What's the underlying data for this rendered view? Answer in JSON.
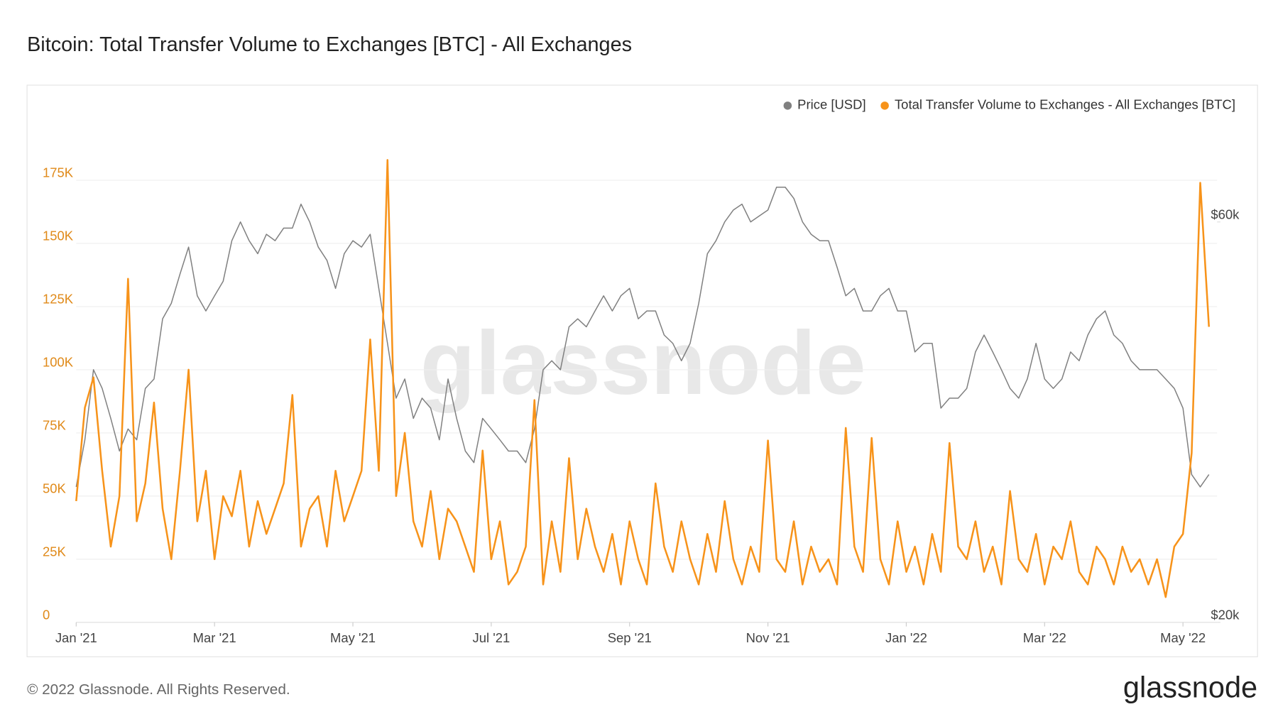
{
  "chart_data": {
    "type": "line",
    "title": "Bitcoin: Total Transfer Volume to Exchanges [BTC] - All Exchanges",
    "watermark": "glassnode",
    "categories": [
      "Jan '21",
      null,
      null,
      null,
      null,
      null,
      null,
      null,
      null,
      null,
      null,
      null,
      null,
      null,
      null,
      null,
      "Mar '21",
      null,
      null,
      null,
      null,
      null,
      null,
      null,
      null,
      null,
      null,
      null,
      null,
      null,
      null,
      null,
      "May '21",
      null,
      null,
      null,
      null,
      null,
      null,
      null,
      null,
      null,
      null,
      null,
      null,
      null,
      null,
      null,
      "Jul '21",
      null,
      null,
      null,
      null,
      null,
      null,
      null,
      null,
      null,
      null,
      null,
      null,
      null,
      null,
      null,
      "Sep '21",
      null,
      null,
      null,
      null,
      null,
      null,
      null,
      null,
      null,
      null,
      null,
      null,
      null,
      null,
      null,
      "Nov '21",
      null,
      null,
      null,
      null,
      null,
      null,
      null,
      null,
      null,
      null,
      null,
      null,
      null,
      null,
      null,
      "Jan '22",
      null,
      null,
      null,
      null,
      null,
      null,
      null,
      null,
      null,
      null,
      null,
      null,
      null,
      null,
      null,
      "Mar '22",
      null,
      null,
      null,
      null,
      null,
      null,
      null,
      null,
      null,
      null,
      null,
      null,
      null,
      null,
      null,
      "May '22",
      null,
      null,
      null
    ],
    "series": [
      {
        "name": "Price [USD]",
        "color": "#808080",
        "axis": "y2",
        "values": [
          29000,
          33000,
          40000,
          38000,
          35000,
          32000,
          34000,
          33000,
          38000,
          39000,
          46000,
          48000,
          52000,
          56000,
          49000,
          47000,
          49000,
          51000,
          57000,
          60000,
          57000,
          55000,
          58000,
          57000,
          59000,
          59000,
          63000,
          60000,
          56000,
          54000,
          50000,
          55000,
          57000,
          56000,
          58000,
          50000,
          43000,
          37000,
          39000,
          35000,
          37000,
          36000,
          33000,
          39000,
          35000,
          32000,
          31000,
          35000,
          34000,
          33000,
          32000,
          32000,
          31000,
          34000,
          40000,
          41000,
          40000,
          45000,
          46000,
          45000,
          47000,
          49000,
          47000,
          49000,
          50000,
          46000,
          47000,
          47000,
          44000,
          43000,
          41000,
          43000,
          48000,
          55000,
          57000,
          60000,
          62000,
          63000,
          60000,
          61000,
          62000,
          66000,
          66000,
          64000,
          60000,
          58000,
          57000,
          57000,
          53000,
          49000,
          50000,
          47000,
          47000,
          49000,
          50000,
          47000,
          47000,
          42000,
          43000,
          43000,
          36000,
          37000,
          37000,
          38000,
          42000,
          44000,
          42000,
          40000,
          38000,
          37000,
          39000,
          43000,
          39000,
          38000,
          39000,
          42000,
          41000,
          44000,
          46000,
          47000,
          44000,
          43000,
          41000,
          40000,
          40000,
          40000,
          39000,
          38000,
          36000,
          30000,
          29000,
          30000
        ]
      },
      {
        "name": "Total Transfer Volume to Exchanges - All Exchanges [BTC]",
        "color": "#f7931a",
        "values": [
          48000,
          85000,
          97000,
          60000,
          30000,
          50000,
          136000,
          40000,
          55000,
          87000,
          45000,
          25000,
          60000,
          100000,
          40000,
          60000,
          25000,
          50000,
          42000,
          60000,
          30000,
          48000,
          35000,
          45000,
          55000,
          90000,
          30000,
          45000,
          50000,
          30000,
          60000,
          40000,
          50000,
          60000,
          112000,
          60000,
          183000,
          50000,
          75000,
          40000,
          30000,
          52000,
          25000,
          45000,
          40000,
          30000,
          20000,
          68000,
          25000,
          40000,
          15000,
          20000,
          30000,
          88000,
          15000,
          40000,
          20000,
          65000,
          25000,
          45000,
          30000,
          20000,
          35000,
          15000,
          40000,
          25000,
          15000,
          55000,
          30000,
          20000,
          40000,
          25000,
          15000,
          35000,
          20000,
          48000,
          25000,
          15000,
          30000,
          20000,
          72000,
          25000,
          20000,
          40000,
          15000,
          30000,
          20000,
          25000,
          15000,
          77000,
          30000,
          20000,
          73000,
          25000,
          15000,
          40000,
          20000,
          30000,
          15000,
          35000,
          20000,
          71000,
          30000,
          25000,
          40000,
          20000,
          30000,
          15000,
          52000,
          25000,
          20000,
          35000,
          15000,
          30000,
          25000,
          40000,
          20000,
          15000,
          30000,
          25000,
          15000,
          30000,
          20000,
          25000,
          15000,
          25000,
          10000,
          30000,
          35000,
          67000,
          174000,
          117000
        ]
      }
    ],
    "ylim": [
      0,
      200000
    ],
    "yticks": [
      0,
      {
        "value": 25000,
        "label": "25K"
      },
      {
        "value": 50000,
        "label": "50K"
      },
      {
        "value": 75000,
        "label": "75K"
      },
      {
        "value": 100000,
        "label": "100K"
      },
      {
        "value": 125000,
        "label": "125K"
      },
      {
        "value": 150000,
        "label": "150K"
      },
      {
        "value": 175000,
        "label": "175K"
      }
    ],
    "y2lim": [
      20000,
      80000
    ],
    "y2scale": "log",
    "y2ticks": [
      {
        "value": 20000,
        "label": "$20k"
      },
      {
        "value": 60000,
        "label": "$60k"
      }
    ],
    "grid": true,
    "legend": "top-right"
  },
  "footer": {
    "copyright": "© 2022 Glassnode. All Rights Reserved.",
    "logo": "glassnode"
  }
}
